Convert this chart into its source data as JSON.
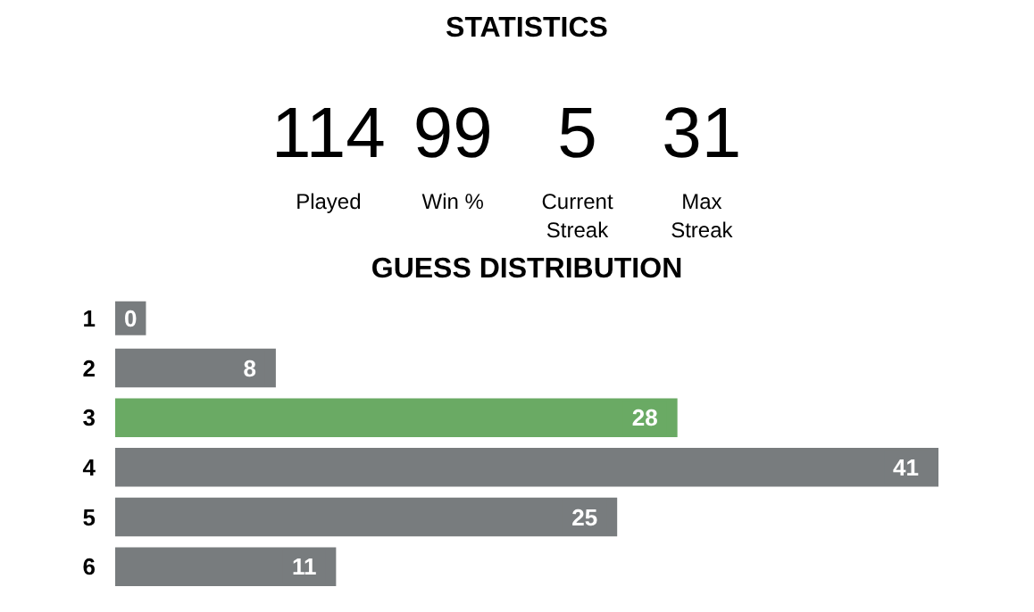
{
  "chart_data": [
    {
      "type": "other",
      "title": "STATISTICS",
      "categories": [
        "Played",
        "Win %",
        "Current\nStreak",
        "Max\nStreak"
      ],
      "values": [
        114,
        99,
        5,
        31
      ],
      "data_labels": true
    },
    {
      "type": "bar",
      "title": "GUESS DISTRIBUTION",
      "orientation": "horizontal",
      "categories": [
        "1",
        "2",
        "3",
        "4",
        "5",
        "6"
      ],
      "values": [
        0,
        8,
        28,
        41,
        25,
        11
      ],
      "colors": [
        "#787c7e",
        "#787c7e",
        "#6aaa64",
        "#787c7e",
        "#787c7e",
        "#787c7e"
      ],
      "data_labels": true
    }
  ]
}
